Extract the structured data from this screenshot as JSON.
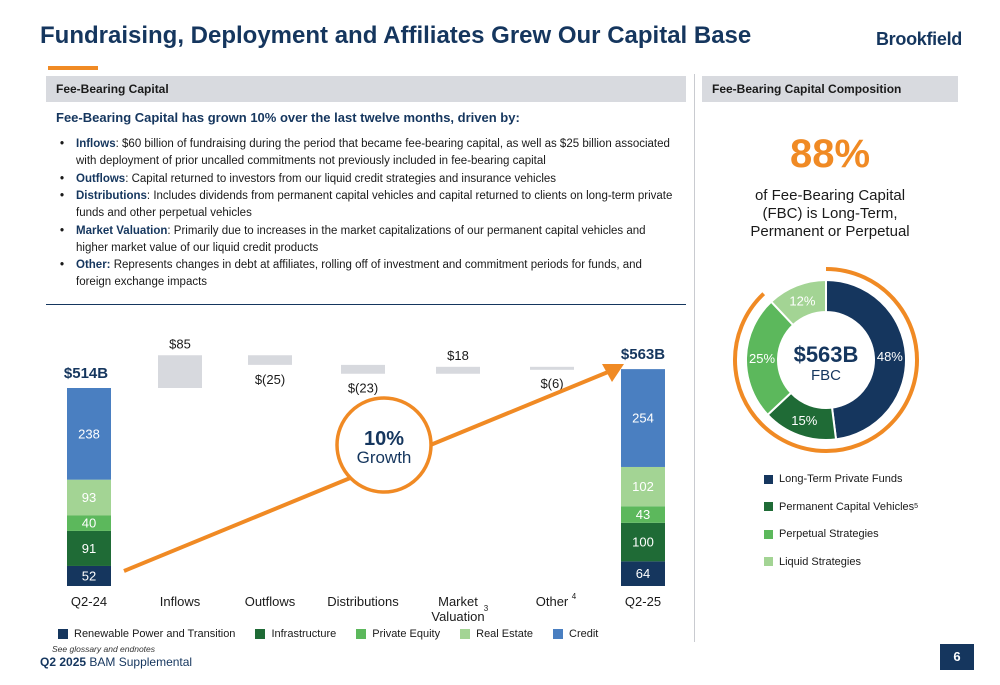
{
  "header": {
    "title": "Fundraising, Deployment and Affiliates Grew Our Capital Base",
    "logo": "Brookfield"
  },
  "left_panel": {
    "section_title": "Fee-Bearing Capital",
    "subheading": "Fee-Bearing Capital has grown 10% over the last twelve months, driven by:",
    "bullets": [
      {
        "term": "Inflows",
        "sep": ":",
        "text": " $60 billion of fundraising during the period that became fee-bearing capital, as well as $25 billion associated with deployment of prior uncalled commitments not previously included in fee-bearing capital"
      },
      {
        "term": "Outflows",
        "sep": ":",
        "text": " Capital returned to investors from our liquid credit strategies and insurance vehicles"
      },
      {
        "term": "Distributions",
        "sep": ":",
        "text": " Includes dividends from permanent capital vehicles and capital returned to clients on long-term private funds and other perpetual vehicles"
      },
      {
        "term": "Market Valuation",
        "sep": ":",
        "text": " Primarily due to increases in the market capitalizations of our permanent capital vehicles and higher market value of our liquid credit products"
      },
      {
        "term": "Other:",
        "sep": "",
        "text": " Represents changes in debt at affiliates, rolling off of investment and commitment periods for funds, and foreign exchange impacts"
      }
    ]
  },
  "right_panel": {
    "section_title": "Fee-Bearing Capital Composition",
    "big_percent": "88%",
    "description_lines": [
      "of Fee-Bearing Capital",
      "(FBC) is Long-Term,",
      "Permanent or Perpetual"
    ]
  },
  "chart_data": [
    {
      "type": "bar",
      "subtype": "waterfall",
      "categories": [
        "Q2-24",
        "Inflows",
        "Outflows",
        "Distributions",
        "Market Valuation",
        "Other",
        "Q2-25"
      ],
      "category_footnotes": {
        "Market Valuation": "3",
        "Other": "4"
      },
      "stacked_totals": [
        {
          "category": "Q2-24",
          "total_label": "$514B",
          "segments": [
            {
              "series": "Renewable Power and Transition",
              "value": 52
            },
            {
              "series": "Infrastructure",
              "value": 91
            },
            {
              "series": "Private Equity",
              "value": 40
            },
            {
              "series": "Real Estate",
              "value": 93
            },
            {
              "series": "Credit",
              "value": 238
            }
          ]
        },
        {
          "category": "Q2-25",
          "total_label": "$563B",
          "segments": [
            {
              "series": "Renewable Power and Transition",
              "value": 64
            },
            {
              "series": "Infrastructure",
              "value": 100
            },
            {
              "series": "Private Equity",
              "value": 43
            },
            {
              "series": "Real Estate",
              "value": 102
            },
            {
              "series": "Credit",
              "value": 254
            }
          ]
        }
      ],
      "changes": [
        {
          "category": "Inflows",
          "value": 85,
          "label": "$85"
        },
        {
          "category": "Outflows",
          "value": -25,
          "label": "$(25)"
        },
        {
          "category": "Distributions",
          "value": -23,
          "label": "$(23)"
        },
        {
          "category": "Market Valuation",
          "value": 18,
          "label": "$18"
        },
        {
          "category": "Other",
          "value": -6,
          "label": "$(6)"
        }
      ],
      "series": [
        {
          "name": "Renewable Power and Transition",
          "color": "#15365e"
        },
        {
          "name": "Infrastructure",
          "color": "#1f6b36"
        },
        {
          "name": "Private Equity",
          "color": "#5cb85c"
        },
        {
          "name": "Real Estate",
          "color": "#a3d494"
        },
        {
          "name": "Credit",
          "color": "#4a7fc1"
        }
      ],
      "change_bar_color": "#d7d9de",
      "growth_annotation": {
        "value": "10%",
        "label": "Growth"
      },
      "legend_position": "bottom",
      "grid": false
    },
    {
      "type": "pie",
      "subtype": "donut",
      "center_value": "$563B",
      "center_label": "FBC",
      "slices": [
        {
          "name": "Long-Term Private Funds",
          "value": 48,
          "label": "48%",
          "color": "#15365e"
        },
        {
          "name": "Permanent Capital Vehicles",
          "footnote": "5",
          "value": 15,
          "label": "15%",
          "color": "#1f6b36"
        },
        {
          "name": "Perpetual Strategies",
          "value": 25,
          "label": "25%",
          "color": "#5cb85c"
        },
        {
          "name": "Liquid Strategies",
          "value": 12,
          "label": "12%",
          "color": "#a3d494"
        }
      ],
      "highlight_color": "#f08a24",
      "legend_position": "bottom"
    }
  ],
  "footer": {
    "glossary_note": "See glossary and endnotes",
    "quarter": "Q2 2025",
    "document": " BAM Supplemental",
    "page_number": "6"
  }
}
